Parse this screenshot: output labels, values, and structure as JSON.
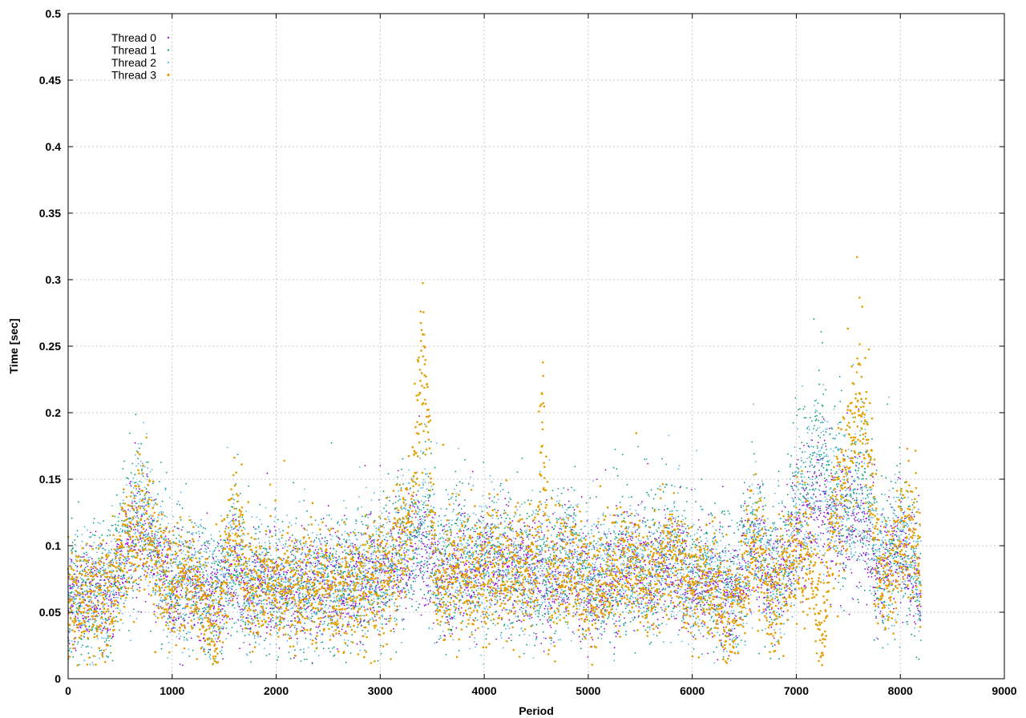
{
  "chart_data": {
    "type": "scatter",
    "title": "",
    "xlabel": "Period",
    "ylabel": "Time [sec]",
    "xlim": [
      0,
      9000
    ],
    "ylim": [
      0,
      0.5
    ],
    "xticks": [
      "0",
      "1000",
      "2000",
      "3000",
      "4000",
      "5000",
      "6000",
      "7000",
      "8000",
      "9000"
    ],
    "yticks": [
      "0",
      "0.05",
      "0.1",
      "0.15",
      "0.2",
      "0.25",
      "0.3",
      "0.35",
      "0.4",
      "0.45",
      "0.5"
    ],
    "grid": true,
    "legend_position": "top-left",
    "n_periods": 8200,
    "series": [
      {
        "name": "Thread 0",
        "color": "#9400d3",
        "profile": [
          [
            0,
            0.057
          ],
          [
            200,
            0.063
          ],
          [
            400,
            0.065
          ],
          [
            550,
            0.095
          ],
          [
            700,
            0.115
          ],
          [
            850,
            0.088
          ],
          [
            1000,
            0.07
          ],
          [
            1200,
            0.072
          ],
          [
            1350,
            0.065
          ],
          [
            1450,
            0.06
          ],
          [
            1600,
            0.085
          ],
          [
            1750,
            0.063
          ],
          [
            1900,
            0.072
          ],
          [
            2100,
            0.068
          ],
          [
            2300,
            0.07
          ],
          [
            2500,
            0.073
          ],
          [
            2700,
            0.07
          ],
          [
            2900,
            0.078
          ],
          [
            3100,
            0.082
          ],
          [
            3300,
            0.095
          ],
          [
            3420,
            0.105
          ],
          [
            3550,
            0.072
          ],
          [
            3750,
            0.082
          ],
          [
            3900,
            0.078
          ],
          [
            4100,
            0.085
          ],
          [
            4300,
            0.08
          ],
          [
            4500,
            0.078
          ],
          [
            4600,
            0.075
          ],
          [
            4800,
            0.082
          ],
          [
            5000,
            0.07
          ],
          [
            5200,
            0.075
          ],
          [
            5400,
            0.082
          ],
          [
            5600,
            0.075
          ],
          [
            5800,
            0.09
          ],
          [
            6000,
            0.072
          ],
          [
            6200,
            0.072
          ],
          [
            6400,
            0.065
          ],
          [
            6600,
            0.095
          ],
          [
            6750,
            0.075
          ],
          [
            6900,
            0.085
          ],
          [
            7050,
            0.12
          ],
          [
            7200,
            0.13
          ],
          [
            7350,
            0.12
          ],
          [
            7500,
            0.115
          ],
          [
            7650,
            0.12
          ],
          [
            7800,
            0.075
          ],
          [
            8000,
            0.095
          ],
          [
            8200,
            0.07
          ]
        ],
        "spread": 0.022
      },
      {
        "name": "Thread 1",
        "color": "#009e73",
        "profile": [
          [
            0,
            0.058
          ],
          [
            200,
            0.065
          ],
          [
            400,
            0.066
          ],
          [
            550,
            0.1
          ],
          [
            700,
            0.125
          ],
          [
            850,
            0.09
          ],
          [
            1000,
            0.07
          ],
          [
            1200,
            0.075
          ],
          [
            1350,
            0.065
          ],
          [
            1450,
            0.06
          ],
          [
            1600,
            0.095
          ],
          [
            1750,
            0.065
          ],
          [
            1900,
            0.073
          ],
          [
            2100,
            0.07
          ],
          [
            2300,
            0.072
          ],
          [
            2500,
            0.075
          ],
          [
            2700,
            0.072
          ],
          [
            2900,
            0.08
          ],
          [
            3100,
            0.085
          ],
          [
            3300,
            0.105
          ],
          [
            3420,
            0.12
          ],
          [
            3550,
            0.075
          ],
          [
            3750,
            0.09
          ],
          [
            3900,
            0.08
          ],
          [
            4100,
            0.09
          ],
          [
            4300,
            0.08
          ],
          [
            4500,
            0.082
          ],
          [
            4600,
            0.08
          ],
          [
            4800,
            0.088
          ],
          [
            5000,
            0.075
          ],
          [
            5200,
            0.08
          ],
          [
            5400,
            0.088
          ],
          [
            5600,
            0.08
          ],
          [
            5800,
            0.1
          ],
          [
            6000,
            0.075
          ],
          [
            6200,
            0.075
          ],
          [
            6400,
            0.068
          ],
          [
            6600,
            0.11
          ],
          [
            6750,
            0.08
          ],
          [
            6900,
            0.09
          ],
          [
            7050,
            0.15
          ],
          [
            7200,
            0.165
          ],
          [
            7350,
            0.14
          ],
          [
            7500,
            0.13
          ],
          [
            7650,
            0.14
          ],
          [
            7800,
            0.08
          ],
          [
            8000,
            0.11
          ],
          [
            8200,
            0.07
          ]
        ],
        "spread": 0.028
      },
      {
        "name": "Thread 2",
        "color": "#56b4e9",
        "profile": [
          [
            0,
            0.058
          ],
          [
            200,
            0.064
          ],
          [
            400,
            0.066
          ],
          [
            550,
            0.098
          ],
          [
            700,
            0.12
          ],
          [
            850,
            0.09
          ],
          [
            1000,
            0.07
          ],
          [
            1200,
            0.074
          ],
          [
            1350,
            0.065
          ],
          [
            1450,
            0.06
          ],
          [
            1600,
            0.09
          ],
          [
            1750,
            0.064
          ],
          [
            1900,
            0.073
          ],
          [
            2100,
            0.07
          ],
          [
            2300,
            0.072
          ],
          [
            2500,
            0.075
          ],
          [
            2700,
            0.072
          ],
          [
            2900,
            0.08
          ],
          [
            3100,
            0.085
          ],
          [
            3300,
            0.1
          ],
          [
            3420,
            0.115
          ],
          [
            3550,
            0.074
          ],
          [
            3750,
            0.088
          ],
          [
            3900,
            0.08
          ],
          [
            4100,
            0.088
          ],
          [
            4300,
            0.08
          ],
          [
            4500,
            0.08
          ],
          [
            4600,
            0.078
          ],
          [
            4800,
            0.085
          ],
          [
            5000,
            0.072
          ],
          [
            5200,
            0.078
          ],
          [
            5400,
            0.086
          ],
          [
            5600,
            0.078
          ],
          [
            5800,
            0.095
          ],
          [
            6000,
            0.074
          ],
          [
            6200,
            0.074
          ],
          [
            6400,
            0.066
          ],
          [
            6600,
            0.105
          ],
          [
            6750,
            0.078
          ],
          [
            6900,
            0.088
          ],
          [
            7050,
            0.14
          ],
          [
            7200,
            0.155
          ],
          [
            7350,
            0.135
          ],
          [
            7500,
            0.125
          ],
          [
            7650,
            0.135
          ],
          [
            7800,
            0.078
          ],
          [
            8000,
            0.105
          ],
          [
            8200,
            0.07
          ]
        ],
        "spread": 0.026
      },
      {
        "name": "Thread 3",
        "color": "#e69f00",
        "profile": [
          [
            0,
            0.055
          ],
          [
            200,
            0.06
          ],
          [
            400,
            0.062
          ],
          [
            550,
            0.095
          ],
          [
            700,
            0.12
          ],
          [
            850,
            0.085
          ],
          [
            1000,
            0.068
          ],
          [
            1200,
            0.075
          ],
          [
            1350,
            0.05
          ],
          [
            1420,
            0.035
          ],
          [
            1600,
            0.12
          ],
          [
            1750,
            0.06
          ],
          [
            1900,
            0.07
          ],
          [
            2100,
            0.065
          ],
          [
            2300,
            0.068
          ],
          [
            2500,
            0.072
          ],
          [
            2700,
            0.065
          ],
          [
            2900,
            0.07
          ],
          [
            3100,
            0.08
          ],
          [
            3300,
            0.12
          ],
          [
            3400,
            0.24
          ],
          [
            3470,
            0.15
          ],
          [
            3550,
            0.065
          ],
          [
            3750,
            0.085
          ],
          [
            3900,
            0.075
          ],
          [
            4100,
            0.085
          ],
          [
            4300,
            0.075
          ],
          [
            4500,
            0.078
          ],
          [
            4560,
            0.2
          ],
          [
            4620,
            0.08
          ],
          [
            4800,
            0.085
          ],
          [
            5000,
            0.065
          ],
          [
            5200,
            0.075
          ],
          [
            5400,
            0.085
          ],
          [
            5600,
            0.075
          ],
          [
            5800,
            0.095
          ],
          [
            6000,
            0.07
          ],
          [
            6200,
            0.07
          ],
          [
            6300,
            0.045
          ],
          [
            6450,
            0.06
          ],
          [
            6600,
            0.1
          ],
          [
            6750,
            0.06
          ],
          [
            6900,
            0.09
          ],
          [
            7050,
            0.1
          ],
          [
            7200,
            0.06
          ],
          [
            7250,
            0.03
          ],
          [
            7350,
            0.11
          ],
          [
            7500,
            0.16
          ],
          [
            7600,
            0.22
          ],
          [
            7700,
            0.17
          ],
          [
            7800,
            0.065
          ],
          [
            8000,
            0.1
          ],
          [
            8150,
            0.11
          ],
          [
            8200,
            0.06
          ]
        ],
        "spread": 0.024
      }
    ]
  }
}
